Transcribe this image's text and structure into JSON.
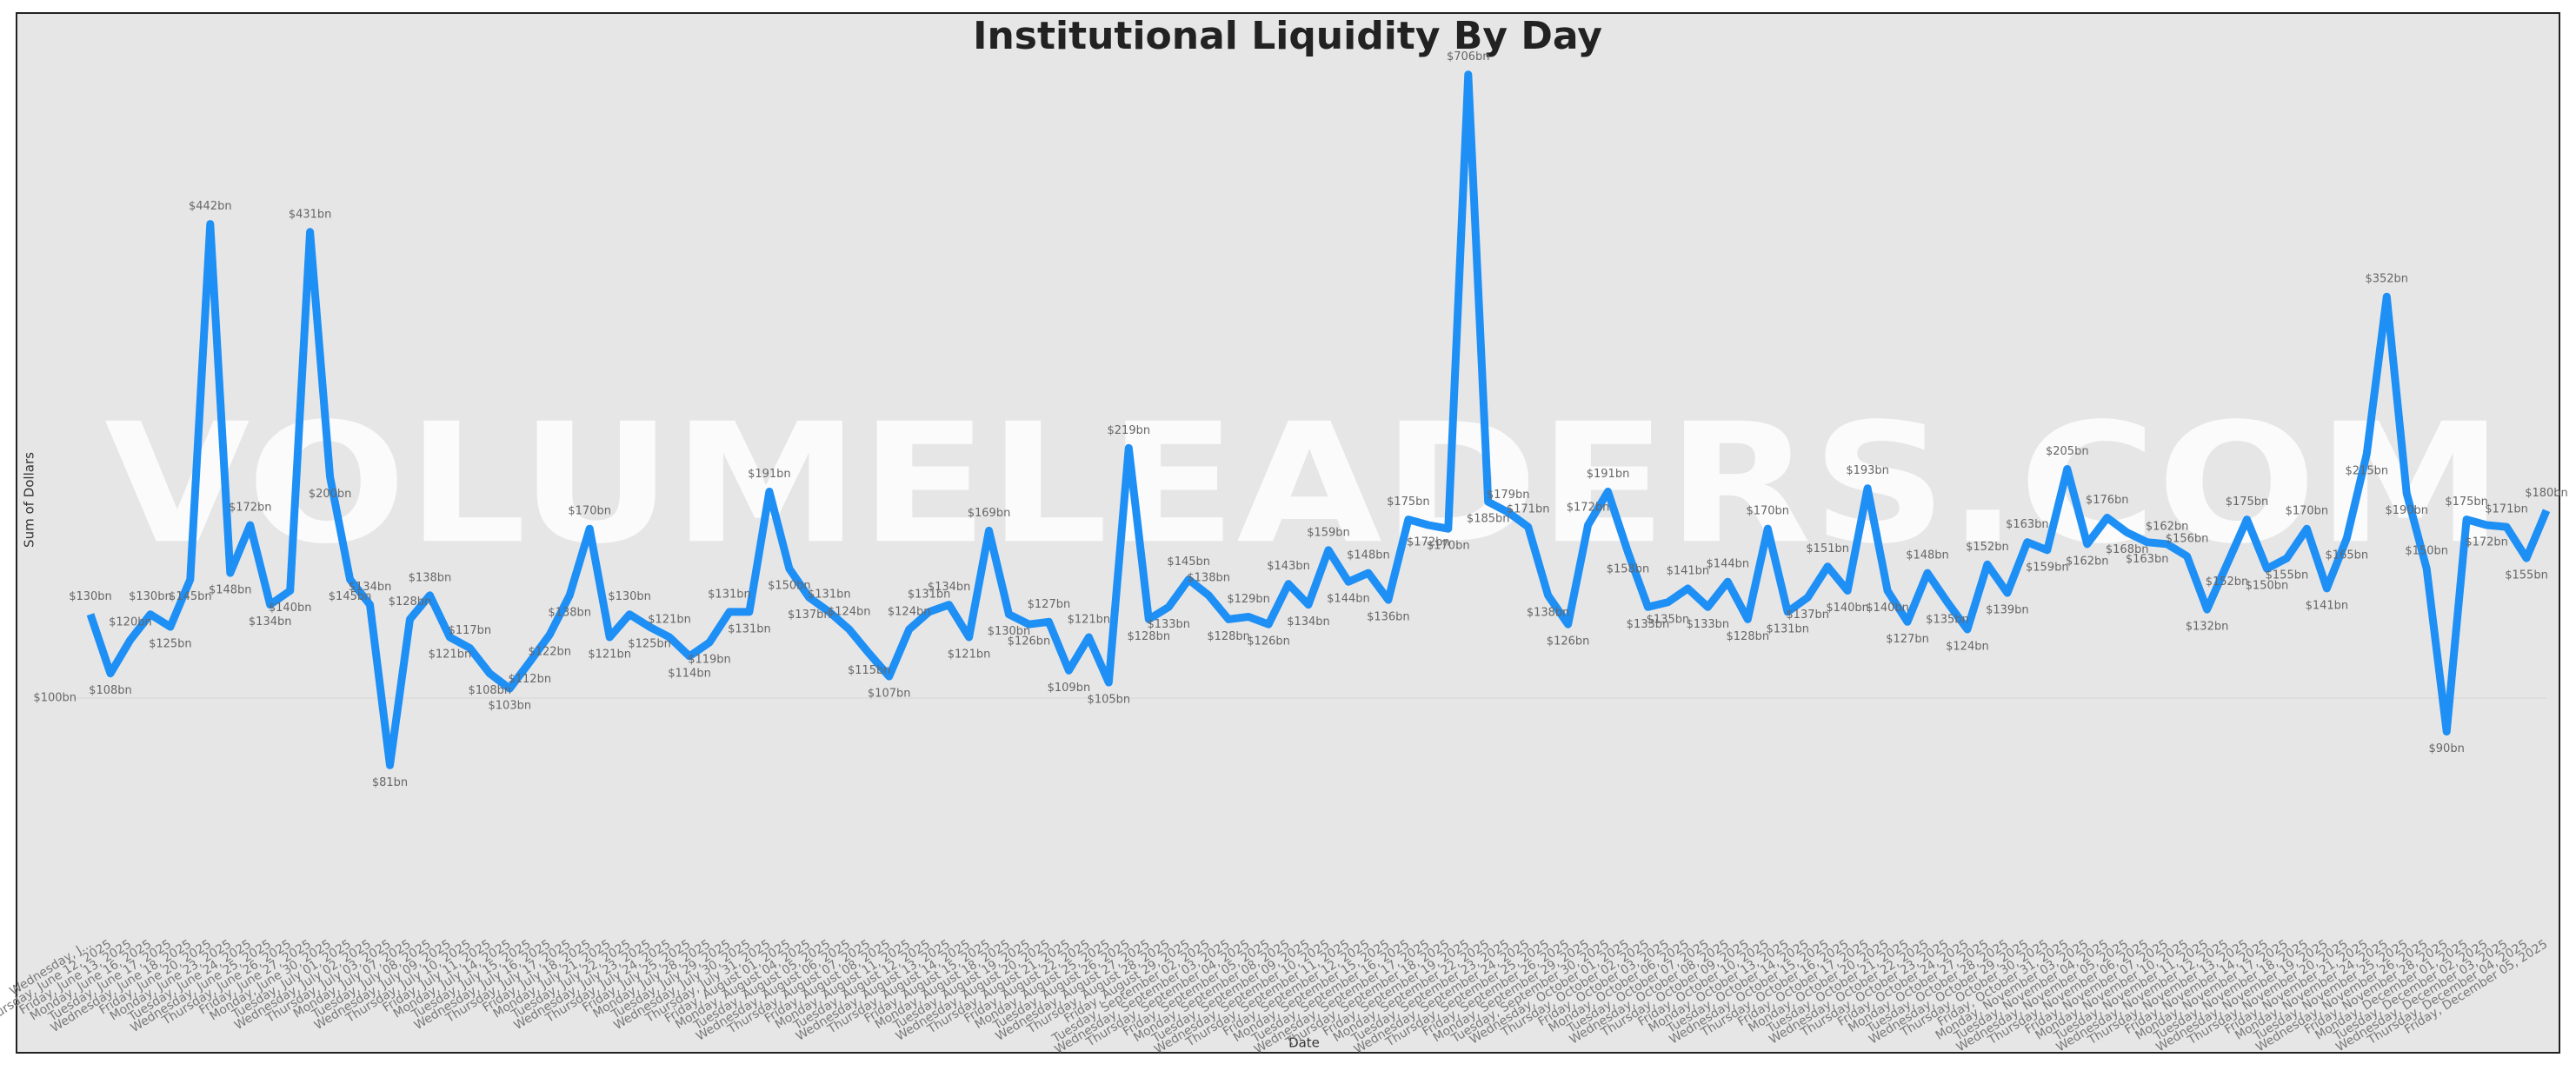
{
  "chart_data": {
    "type": "line",
    "title": "Institutional Liquidity By Day",
    "watermark": "VOLUMELEADERS.COM",
    "x_label": "Date",
    "y_label": "Sum of Dollars",
    "log_scale": true,
    "ylim": [
      45,
      725
    ],
    "yticks": [
      {
        "value": 100,
        "label": "$100bn"
      }
    ],
    "grid": true,
    "categories": [
      "Wednesday, J...",
      "Thursday, June 12, 2025",
      "Friday, June 13, 2025",
      "Monday, June 16, 2025",
      "Tuesday, June 17, 2025",
      "Wednesday, June 18, 2025",
      "Friday, June 20, 2025",
      "Monday, June 23, 2025",
      "Tuesday, June 24, 2025",
      "Wednesday, June 25, 2025",
      "Thursday, June 26, 2025",
      "Friday, June 27, 2025",
      "Monday, June 30, 2025",
      "Tuesday, July 01, 2025",
      "Wednesday, July 02, 2025",
      "Thursday, July 03, 2025",
      "Monday, July 07, 2025",
      "Tuesday, July 08, 2025",
      "Wednesday, July 09, 2025",
      "Thursday, July 10, 2025",
      "Friday, July 11, 2025",
      "Monday, July 14, 2025",
      "Tuesday, July 15, 2025",
      "Wednesday, July 16, 2025",
      "Thursday, July 17, 2025",
      "Friday, July 18, 2025",
      "Monday, July 21, 2025",
      "Tuesday, July 22, 2025",
      "Wednesday, July 23, 2025",
      "Thursday, July 24, 2025",
      "Friday, July 25, 2025",
      "Monday, July 28, 2025",
      "Tuesday, July 29, 2025",
      "Wednesday, July 30, 2025",
      "Thursday, July 31, 2025",
      "Friday, August 01, 2025",
      "Monday, August 04, 2025",
      "Tuesday, August 05, 2025",
      "Wednesday, August 06, 2025",
      "Thursday, August 07, 2025",
      "Friday, August 08, 2025",
      "Monday, August 11, 2025",
      "Tuesday, August 12, 2025",
      "Wednesday, August 13, 2025",
      "Thursday, August 14, 2025",
      "Friday, August 15, 2025",
      "Monday, August 18, 2025",
      "Tuesday, August 19, 2025",
      "Wednesday, August 20, 2025",
      "Thursday, August 21, 2025",
      "Friday, August 22, 2025",
      "Monday, August 25, 2025",
      "Tuesday, August 26, 2025",
      "Wednesday, August 27, 2025",
      "Thursday, August 28, 2025",
      "Friday, August 29, 2025",
      "Tuesday, September 02, 2025",
      "Wednesday, September 03, 2025",
      "Thursday, September 04, 2025",
      "Friday, September 05, 2025",
      "Monday, September 08, 2025",
      "Tuesday, September 09, 2025",
      "Wednesday, September 10, 2025",
      "Thursday, September 11, 2025",
      "Friday, September 12, 2025",
      "Monday, September 15, 2025",
      "Tuesday, September 16, 2025",
      "Wednesday, September 17, 2025",
      "Thursday, September 18, 2025",
      "Friday, September 19, 2025",
      "Monday, September 22, 2025",
      "Tuesday, September 23, 2025",
      "Wednesday, September 24, 2025",
      "Thursday, September 25, 2025",
      "Friday, September 26, 2025",
      "Monday, September 29, 2025",
      "Tuesday, September 30, 2025",
      "Wednesday, October 01, 2025",
      "Thursday, October 02, 2025",
      "Friday, October 03, 2025",
      "Monday, October 06, 2025",
      "Tuesday, October 07, 2025",
      "Wednesday, October 08, 2025",
      "Thursday, October 09, 2025",
      "Friday, October 10, 2025",
      "Monday, October 13, 2025",
      "Tuesday, October 14, 2025",
      "Wednesday, October 15, 2025",
      "Thursday, October 16, 2025",
      "Friday, October 17, 2025",
      "Monday, October 20, 2025",
      "Tuesday, October 21, 2025",
      "Wednesday, October 22, 2025",
      "Thursday, October 23, 2025",
      "Friday, October 24, 2025",
      "Monday, October 27, 2025",
      "Tuesday, October 28, 2025",
      "Wednesday, October 29, 2025",
      "Thursday, October 30, 2025",
      "Friday, October 31, 2025",
      "Monday, November 03, 2025",
      "Tuesday, November 04, 2025",
      "Wednesday, November 05, 2025",
      "Thursday, November 06, 2025",
      "Friday, November 07, 2025",
      "Monday, November 10, 2025",
      "Tuesday, November 11, 2025",
      "Wednesday, November 12, 2025",
      "Thursday, November 13, 2025",
      "Friday, November 14, 2025",
      "Monday, November 17, 2025",
      "Tuesday, November 18, 2025",
      "Wednesday, November 19, 2025",
      "Thursday, November 20, 2025",
      "Friday, November 21, 2025",
      "Monday, November 24, 2025",
      "Tuesday, November 25, 2025",
      "Wednesday, November 26, 2025",
      "Friday, November 28, 2025",
      "Monday, December 01, 2025",
      "Tuesday, December 02, 2025",
      "Wednesday, December 03, 2025",
      "Thursday, December 04, 2025",
      "Friday, December 05, 2025"
    ],
    "series": [
      {
        "name": "Sum of Dollars",
        "color": "#1e8ff5",
        "values": [
          130,
          108,
          120,
          130,
          125,
          145,
          442,
          148,
          172,
          134,
          140,
          431,
          200,
          145,
          134,
          81,
          128,
          138,
          121,
          117,
          108,
          103,
          112,
          122,
          138,
          170,
          121,
          130,
          125,
          121,
          114,
          119,
          131,
          131,
          191,
          150,
          137,
          131,
          124,
          115,
          107,
          124,
          131,
          134,
          121,
          169,
          130,
          126,
          127,
          109,
          121,
          105,
          219,
          128,
          133,
          145,
          138,
          128,
          129,
          126,
          143,
          134,
          159,
          144,
          148,
          136,
          175,
          172,
          170,
          706,
          185,
          179,
          171,
          138,
          126,
          172,
          191,
          158,
          133,
          135,
          141,
          133,
          144,
          128,
          170,
          131,
          137,
          151,
          140,
          193,
          140,
          127,
          148,
          135,
          124,
          152,
          139,
          163,
          159,
          205,
          162,
          176,
          168,
          163,
          162,
          156,
          132,
          152,
          175,
          150,
          155,
          170,
          141,
          165,
          215,
          352,
          190,
          150,
          90,
          175,
          172,
          171,
          155,
          180
        ],
        "value_labels": [
          "$130bn",
          "$108bn",
          "$120bn",
          "$130bn",
          "$125bn",
          "$145bn",
          "$442bn",
          "$148bn",
          "$172bn",
          "$134bn",
          "$140bn",
          "$431bn",
          "$200bn",
          "$145bn",
          "$134bn",
          "$81bn",
          "$128bn",
          "$138bn",
          "$121bn",
          "$117bn",
          "$108bn",
          "$103bn",
          "$112bn",
          "$122bn",
          "$138bn",
          "$170bn",
          "$121bn",
          "$130bn",
          "$125bn",
          "$121bn",
          "$114bn",
          "$119bn",
          "$131bn",
          "$131bn",
          "$191bn",
          "$150bn",
          "$137bn",
          "$131bn",
          "$124bn",
          "$115bn",
          "$107bn",
          "$124bn",
          "$131bn",
          "$134bn",
          "$121bn",
          "$169bn",
          "$130bn",
          "$126bn",
          "$127bn",
          "$109bn",
          "$121bn",
          "$105bn",
          "$219bn",
          "$128bn",
          "$133bn",
          "$145bn",
          "$138bn",
          "$128bn",
          "$129bn",
          "$126bn",
          "$143bn",
          "$134bn",
          "$159bn",
          "$144bn",
          "$148bn",
          "$136bn",
          "$175bn",
          "$172bn",
          "$170bn",
          "$706bn",
          "$185bn",
          "$179bn",
          "$171bn",
          "$138bn",
          "$126bn",
          "$172bn",
          "$191bn",
          "$158bn",
          "$133bn",
          "$135bn",
          "$141bn",
          "$133bn",
          "$144bn",
          "$128bn",
          "$170bn",
          "$131bn",
          "$137bn",
          "$151bn",
          "$140bn",
          "$193bn",
          "$140bn",
          "$127bn",
          "$148bn",
          "$135bn",
          "$124bn",
          "$152bn",
          "$139bn",
          "$163bn",
          "$159bn",
          "$205bn",
          "$162bn",
          "$176bn",
          "$168bn",
          "$163bn",
          "$162bn",
          "$156bn",
          "$132bn",
          "$152bn",
          "$175bn",
          "$150bn",
          "$155bn",
          "$170bn",
          "$141bn",
          "$165bn",
          "$215bn",
          "$352bn",
          "$190bn",
          "$150bn",
          "$90bn",
          "$175bn",
          "$172bn",
          "$171bn",
          "$155bn",
          "$180bn"
        ]
      }
    ]
  }
}
